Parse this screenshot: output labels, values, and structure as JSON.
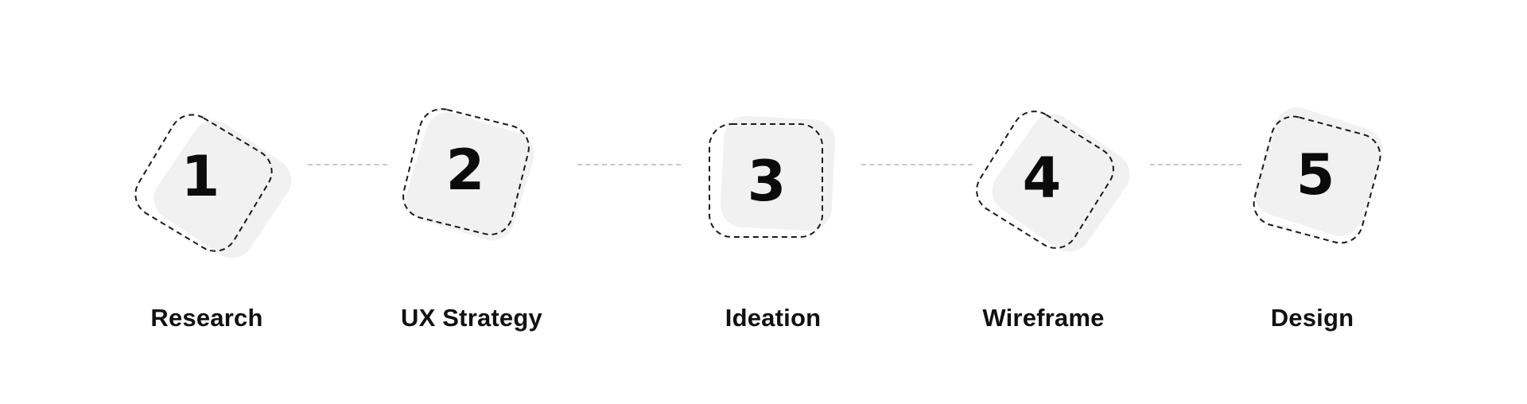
{
  "steps": [
    {
      "number": "1",
      "label": "Research"
    },
    {
      "number": "2",
      "label": "UX Strategy"
    },
    {
      "number": "3",
      "label": "Ideation"
    },
    {
      "number": "4",
      "label": "Wireframe"
    },
    {
      "number": "5",
      "label": "Design"
    }
  ],
  "colors": {
    "tile_fill": "#f1f1f1",
    "dashed_outline": "#1a1a1a",
    "connector": "#c9c9c9",
    "text": "#111111"
  }
}
